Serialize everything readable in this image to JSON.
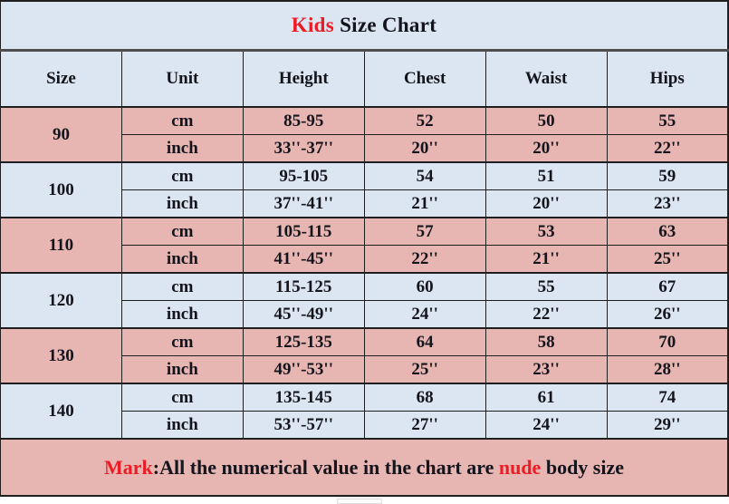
{
  "title": {
    "kids": "Kids",
    "rest": " Size Chart"
  },
  "mark": {
    "label": "Mark",
    "mid": ":All the numerical value in the chart are ",
    "highlight": "nude",
    "tail": " body size"
  },
  "colors": {
    "row_pink": "#e7b5b2",
    "row_blue": "#dce6f2",
    "accent_red": "#ed1c24",
    "text": "#14141c",
    "border": "#1f1f1f"
  },
  "chart_data": {
    "type": "table",
    "title": "Kids Size Chart",
    "columns": [
      "Size",
      "Unit",
      "Height",
      "Chest",
      "Waist",
      "Hips"
    ],
    "rows": [
      [
        "90",
        "cm",
        "85-95",
        "52",
        "50",
        "55"
      ],
      [
        "90",
        "inch",
        "33''-37''",
        "20''",
        "20''",
        "22''"
      ],
      [
        "100",
        "cm",
        "95-105",
        "54",
        "51",
        "59"
      ],
      [
        "100",
        "inch",
        "37''-41''",
        "21''",
        "20''",
        "23''"
      ],
      [
        "110",
        "cm",
        "105-115",
        "57",
        "53",
        "63"
      ],
      [
        "110",
        "inch",
        "41''-45''",
        "22''",
        "21''",
        "25''"
      ],
      [
        "120",
        "cm",
        "115-125",
        "60",
        "55",
        "67"
      ],
      [
        "120",
        "inch",
        "45''-49''",
        "24''",
        "22''",
        "26''"
      ],
      [
        "130",
        "cm",
        "125-135",
        "64",
        "58",
        "70"
      ],
      [
        "130",
        "inch",
        "49''-53''",
        "25''",
        "23''",
        "28''"
      ],
      [
        "140",
        "cm",
        "135-145",
        "68",
        "61",
        "74"
      ],
      [
        "140",
        "inch",
        "53''-57''",
        "27''",
        "24''",
        "29''"
      ]
    ],
    "note": "Mark:All the numerical value in the chart are nude body size"
  }
}
